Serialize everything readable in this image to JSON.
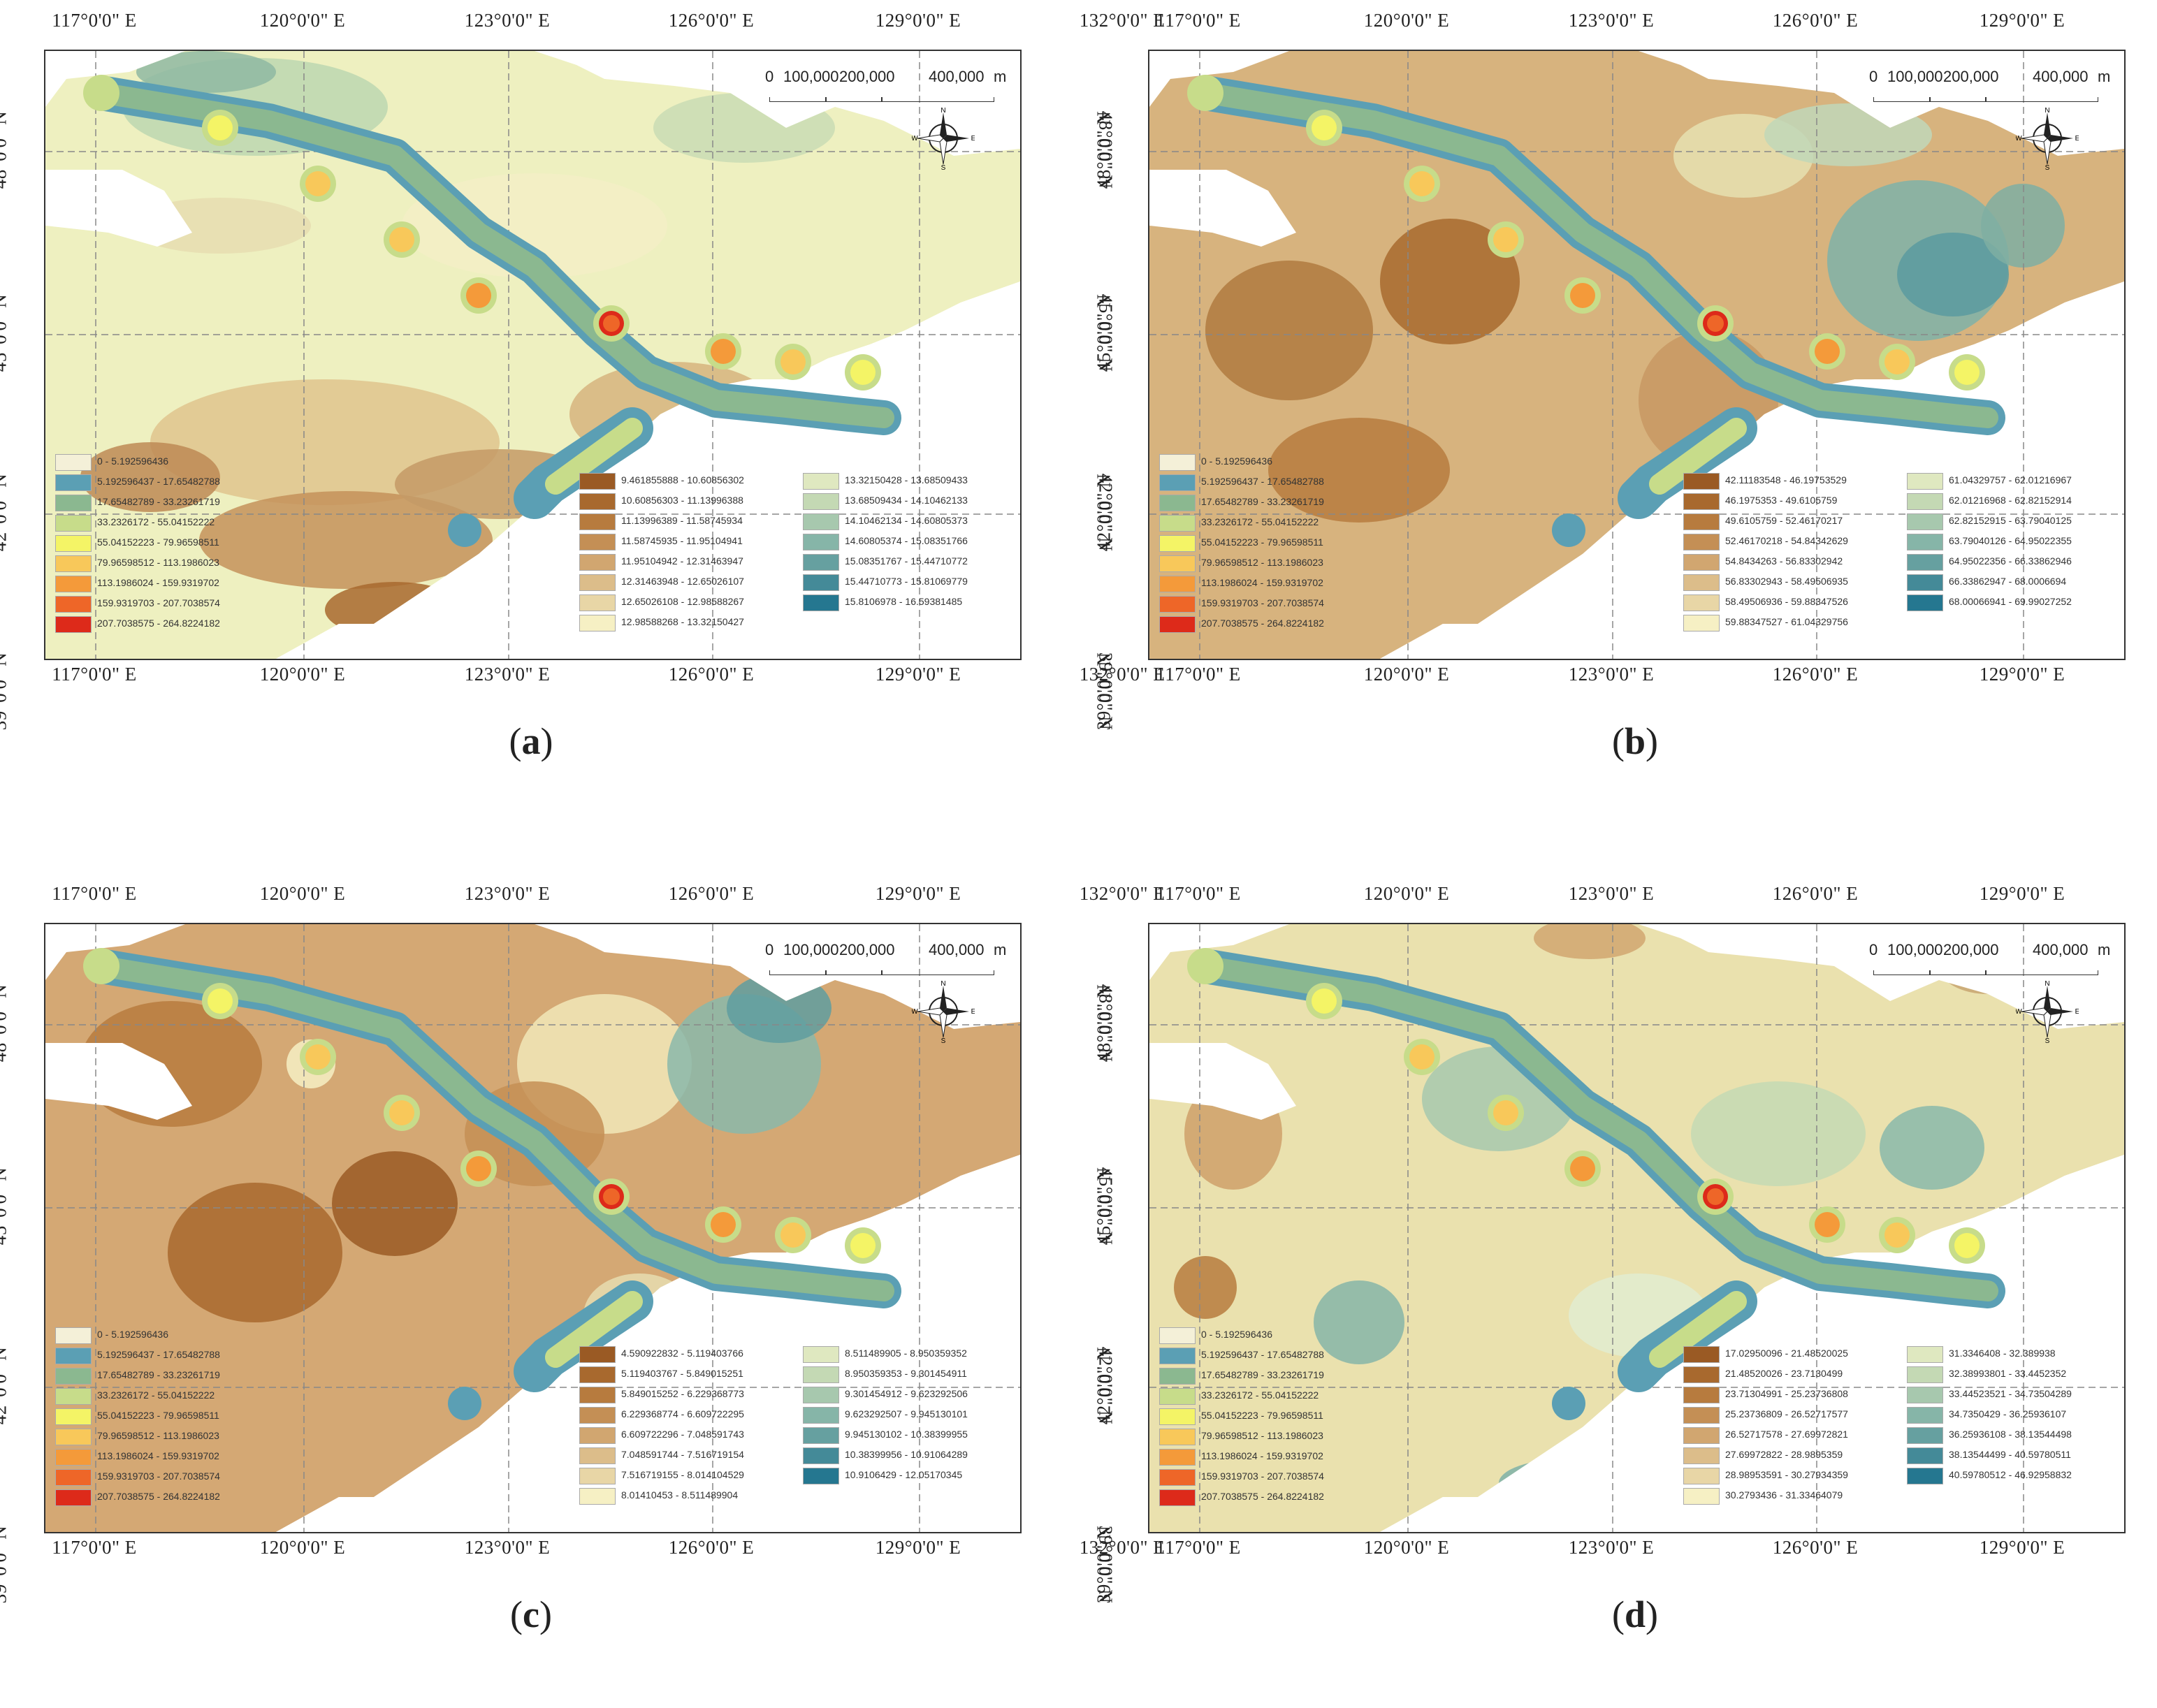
{
  "figure": {
    "ticks_top": [
      "117°0'0\" E",
      "120°0'0\" E",
      "123°0'0\" E",
      "126°0'0\" E",
      "129°0'0\" E",
      "132°0'0\" E"
    ],
    "ticks_bottom": [
      "117°0'0\" E",
      "120°0'0\" E",
      "123°0'0\" E",
      "126°0'0\" E",
      "129°0'0\" E",
      "132°0'0\" E"
    ],
    "ticks_side": [
      "48°0'0\" N",
      "45°0'0\" N",
      "42°0'0\" N",
      "39°0'0\" N"
    ],
    "scale_values": [
      "0",
      "100,000",
      "200,000",
      "400,000",
      "m"
    ],
    "compass": {
      "n": "N",
      "s": "S",
      "e": "E",
      "w": "W"
    }
  },
  "common_legend": [
    {
      "label": "0 - 5.192596436",
      "color": "#f4f0d8"
    },
    {
      "label": "5.192596437 - 17.65482788",
      "color": "#5b9fb4"
    },
    {
      "label": "17.65482789 - 33.23261719",
      "color": "#8bb890"
    },
    {
      "label": "33.2326172 - 55.04152222",
      "color": "#c7dc8a"
    },
    {
      "label": "55.04152223 - 79.96598511",
      "color": "#f4f466"
    },
    {
      "label": "79.96598512 - 113.1986023",
      "color": "#f8c85a"
    },
    {
      "label": "113.1986024 - 159.9319702",
      "color": "#f49a3a"
    },
    {
      "label": "159.9319703 - 207.7038574",
      "color": "#ee6628"
    },
    {
      "label": "207.7038575 - 264.8224182",
      "color": "#dd2a1a"
    }
  ],
  "panels": [
    {
      "label": "a",
      "range_legend": [
        "9.461855888 - 10.60856302",
        "10.60856303 - 11.13996388",
        "11.13996389 - 11.58745934",
        "11.58745935 - 11.95104941",
        "11.95104942 - 12.31463947",
        "12.31463948 - 12.65026107",
        "12.65026108 - 12.98588267",
        "12.98588268 - 13.32150427",
        "13.32150428 - 13.68509433",
        "13.68509434 - 14.10462133",
        "14.10462134 - 14.60805373",
        "14.60805374 - 15.08351766",
        "15.08351767 - 15.44710772",
        "15.44710773 - 15.81069779",
        "15.8106978 - 16.59381485"
      ]
    },
    {
      "label": "b",
      "range_legend": [
        "42.11183548 - 46.19753529",
        "46.1975353 - 49.6105759",
        "49.6105759 - 52.46170217",
        "52.46170218 - 54.84342629",
        "54.8434263 - 56.83302942",
        "56.83302943 - 58.49506935",
        "58.49506936 - 59.88347526",
        "59.88347527 - 61.04329756",
        "61.04329757 - 62.01216967",
        "62.01216968 - 62.82152914",
        "62.82152915 - 63.79040125",
        "63.79040126 - 64.95022355",
        "64.95022356 - 66.33862946",
        "66.33862947 - 68.0006694",
        "68.00066941 - 69.99027252"
      ]
    },
    {
      "label": "c",
      "range_legend": [
        "4.590922832 - 5.119403766",
        "5.119403767 - 5.849015251",
        "5.849015252 - 6.229368773",
        "6.229368774 - 6.609722295",
        "6.609722296 - 7.048591743",
        "7.048591744 - 7.516719154",
        "7.516719155 - 8.014104529",
        "8.01410453 - 8.511489904",
        "8.511489905 - 8.950359352",
        "8.950359353 - 9.301454911",
        "9.301454912 - 9.623292506",
        "9.623292507 - 9.945130101",
        "9.945130102 - 10.38399955",
        "10.38399956 - 10.91064289",
        "10.9106429 - 12.05170345"
      ]
    },
    {
      "label": "d",
      "range_legend": [
        "17.02950096 - 21.48520025",
        "21.48520026 - 23.7130499",
        "23.71304991 - 25.23736808",
        "25.23736809 - 26.52717577",
        "26.52717578 - 27.69972821",
        "27.69972822 - 28.9895359",
        "28.98953591 - 30.27934359",
        "30.2793436 - 31.33464079",
        "31.3346408 - 32.389938",
        "32.38993801 - 33.4452352",
        "33.44523521 - 34.73504289",
        "34.7350429 - 36.25936107",
        "36.25936108 - 38.13544498",
        "38.13544499 - 40.59780511",
        "40.59780512 - 46.92958832"
      ]
    }
  ],
  "range_colors": [
    "#9a5a24",
    "#a8692e",
    "#b77b3e",
    "#c48f55",
    "#d1a670",
    "#dcbd8a",
    "#e8d6a6",
    "#f6f0c4",
    "#dfe8c0",
    "#c4d9b4",
    "#a7c8ae",
    "#86b5a8",
    "#66a0a0",
    "#448a98",
    "#257790"
  ]
}
